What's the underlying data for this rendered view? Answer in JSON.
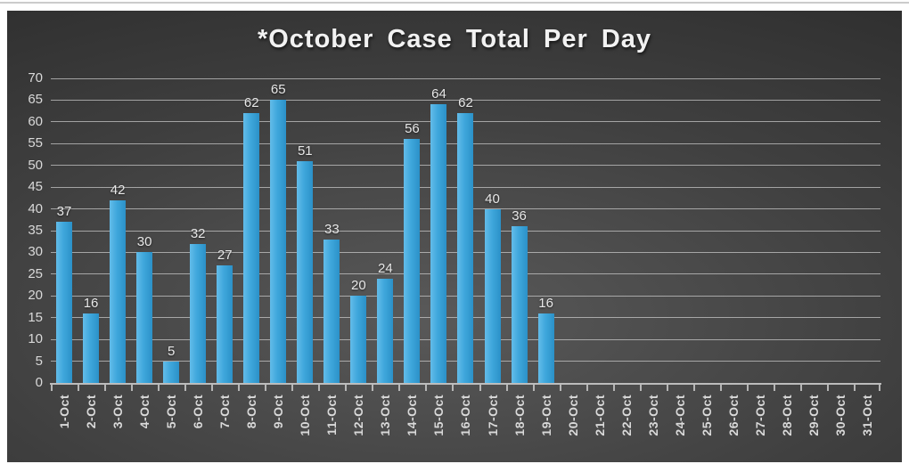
{
  "page": {
    "background": "#FFFFFF"
  },
  "chart_data": {
    "type": "bar",
    "title": "*October Case Total Per Day",
    "categories": [
      "1-Oct",
      "2-Oct",
      "3-Oct",
      "4-Oct",
      "5-Oct",
      "6-Oct",
      "7-Oct",
      "8-Oct",
      "9-Oct",
      "10-Oct",
      "11-Oct",
      "12-Oct",
      "13-Oct",
      "14-Oct",
      "15-Oct",
      "16-Oct",
      "17-Oct",
      "18-Oct",
      "19-Oct",
      "20-Oct",
      "21-Oct",
      "22-Oct",
      "23-Oct",
      "24-Oct",
      "25-Oct",
      "26-Oct",
      "27-Oct",
      "28-Oct",
      "29-Oct",
      "30-Oct",
      "31-Oct"
    ],
    "values": [
      37,
      16,
      42,
      30,
      5,
      32,
      27,
      62,
      65,
      51,
      33,
      20,
      24,
      56,
      64,
      62,
      40,
      36,
      16,
      null,
      null,
      null,
      null,
      null,
      null,
      null,
      null,
      null,
      null,
      null,
      null
    ],
    "xlabel": "",
    "ylabel": "",
    "ylim": [
      0,
      70
    ],
    "yticks": [
      0,
      5,
      10,
      15,
      20,
      25,
      30,
      35,
      40,
      45,
      50,
      55,
      60,
      65,
      70
    ],
    "grid": true,
    "legend": false,
    "data_labels": true,
    "x_label_rotation": "90-degrees-counterclockwise",
    "colors": {
      "bar": "#3FA7DC",
      "bar_highlight": "#63BCE9",
      "bar_shadow": "#2B91C8",
      "plot_bg_center": "#595959",
      "plot_bg_mid": "#3F3F3F",
      "plot_bg_edge": "#262626",
      "gridline": "#CFCFCF",
      "axis_line": "#C9C9C9",
      "tick_label": "#D9D9D9",
      "data_label": "#E8E8E8",
      "title": "#F2F2F2",
      "frame": "#FFFFFF",
      "top_rule": "#CBCBCB"
    }
  }
}
